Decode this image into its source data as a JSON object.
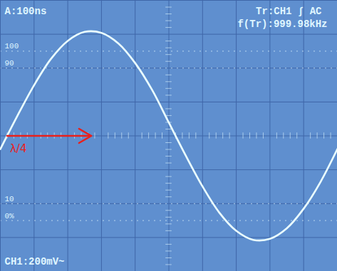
{
  "chart_data": {
    "type": "line",
    "timebase_label": "A:100ns",
    "trigger_label": "Tr:CH1 ∫ AC",
    "frequency_label": "f(Tr):999.98kHz",
    "channel_label": "CH1:200mV~",
    "x": [
      0,
      50,
      100,
      150,
      200,
      250,
      300,
      350,
      400,
      450,
      500,
      550,
      600,
      650,
      700,
      750,
      800,
      850,
      900,
      950,
      1000
    ],
    "values": [
      -78,
      116,
      299,
      454,
      561,
      614,
      608,
      546,
      430,
      272,
      78,
      -116,
      -299,
      -454,
      -561,
      -614,
      -608,
      -546,
      -430,
      -272,
      -78
    ],
    "color": "#eaffff",
    "xlim": [
      0,
      1000
    ],
    "xticks": [
      0,
      100,
      200,
      300,
      400,
      500,
      600,
      700,
      800,
      900,
      1000
    ],
    "ylim": [
      -800,
      800
    ],
    "yticks": [
      -800,
      -600,
      -400,
      -200,
      0,
      200,
      400,
      600,
      800
    ],
    "grid": true,
    "tick_labels": false,
    "markers": [
      {
        "value": 500,
        "label": "100"
      },
      {
        "value": 400,
        "label": "90"
      },
      {
        "value": -400,
        "label": "10"
      },
      {
        "value": -500,
        "label": "0%"
      }
    ],
    "quarter_wave": {
      "label": "λ/4",
      "x": [
        20,
        270
      ],
      "y": 0,
      "color": "#e8201c"
    }
  }
}
